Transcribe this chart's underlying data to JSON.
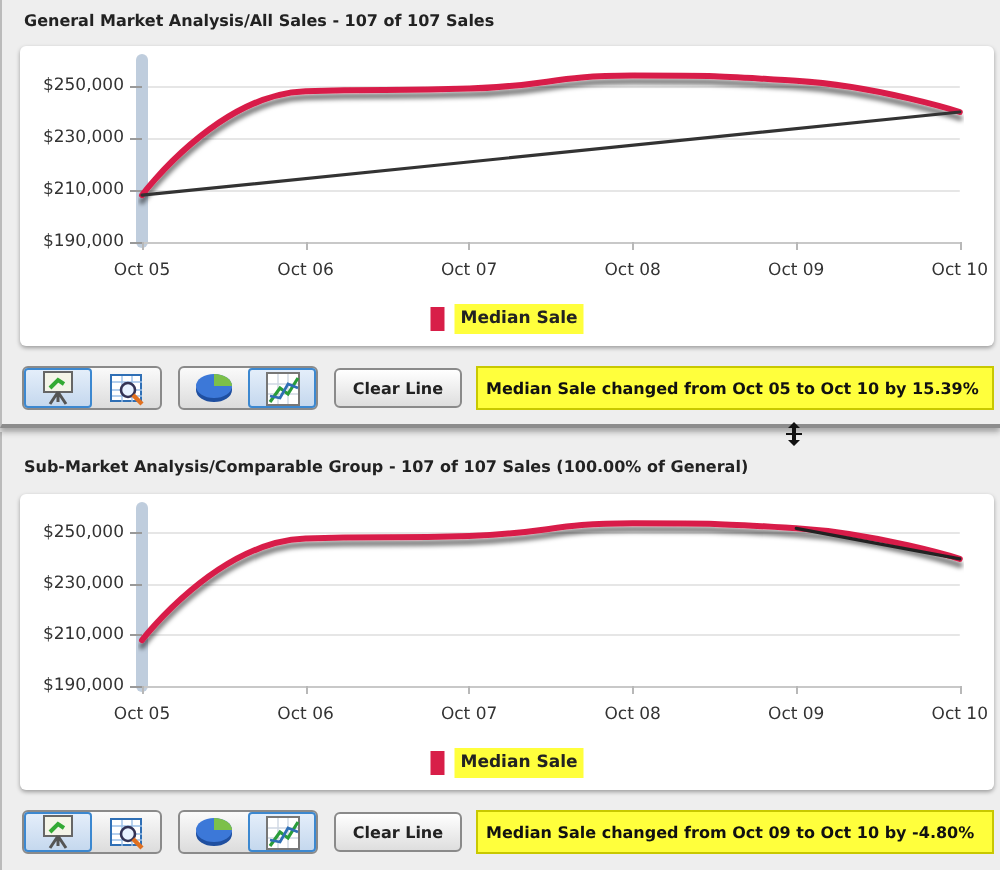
{
  "chart_data": [
    {
      "type": "line",
      "title": "General Market Analysis/All Sales - 107 of 107 Sales",
      "categories": [
        "Oct 05",
        "Oct 06",
        "Oct 07",
        "Oct 08",
        "Oct 09",
        "Oct 10"
      ],
      "series": [
        {
          "name": "Median Sale",
          "color": "#d81e48",
          "values": [
            208000,
            248000,
            249000,
            254000,
            252000,
            240000
          ]
        },
        {
          "color": "#333333",
          "x": [
            "Oct 05",
            "Oct 10"
          ],
          "values": [
            208000,
            240000
          ]
        }
      ],
      "ylim": [
        190000,
        260000
      ],
      "yticks": [
        {
          "value": 190000,
          "label": "$190,000"
        },
        {
          "value": 210000,
          "label": "$210,000"
        },
        {
          "value": 230000,
          "label": "$230,000"
        },
        {
          "value": 250000,
          "label": "$250,000"
        }
      ],
      "grid": "y",
      "legend": "bottom",
      "marker": "none",
      "annotations": [
        "Clear Line",
        "Median Sale changed from Oct 05 to Oct 10 by 15.39%"
      ]
    },
    {
      "type": "line",
      "title": "Sub-Market Analysis/Comparable Group - 107 of 107 Sales (100.00% of General)",
      "categories": [
        "Oct 05",
        "Oct 06",
        "Oct 07",
        "Oct 08",
        "Oct 09",
        "Oct 10"
      ],
      "series": [
        {
          "name": "Median Sale",
          "color": "#d81e48",
          "values": [
            208000,
            248000,
            249000,
            254000,
            252000,
            240000
          ]
        },
        {
          "color": "#222222",
          "x": [
            "Oct 09",
            "Oct 10"
          ],
          "values": [
            252000,
            240000
          ]
        }
      ],
      "ylim": [
        190000,
        260000
      ],
      "yticks": [
        {
          "value": 190000,
          "label": "$190,000"
        },
        {
          "value": 210000,
          "label": "$210,000"
        },
        {
          "value": 230000,
          "label": "$230,000"
        },
        {
          "value": 250000,
          "label": "$250,000"
        }
      ],
      "grid": "y",
      "legend": "bottom",
      "marker": "none",
      "annotations": [
        "Clear Line",
        "Median Sale changed from Oct 09 to Oct 10 by -4.80%"
      ]
    }
  ]
}
